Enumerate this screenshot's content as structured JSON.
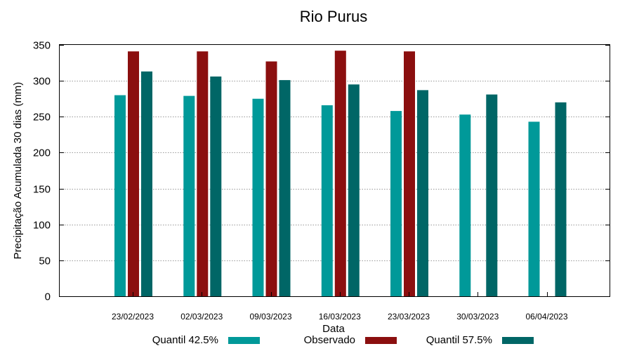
{
  "chart_data": {
    "type": "bar",
    "title": "Rio Purus",
    "xlabel": "Data",
    "ylabel": "Precipitação Acumulada 30 dias (mm)",
    "ylim": [
      0,
      350
    ],
    "yticks": [
      0,
      50,
      100,
      150,
      200,
      250,
      300,
      350
    ],
    "grid": true,
    "legend_position": "bottom",
    "categories": [
      "23/02/2023",
      "02/03/2023",
      "09/03/2023",
      "16/03/2023",
      "23/03/2023",
      "30/03/2023",
      "06/04/2023"
    ],
    "series": [
      {
        "name": "Quantil 42.5%",
        "color": "#009999",
        "values": [
          280,
          279,
          275,
          266,
          258,
          253,
          243
        ]
      },
      {
        "name": "Observado",
        "color": "#8b0f0f",
        "values": [
          341,
          341,
          327,
          342,
          341,
          null,
          null
        ]
      },
      {
        "name": "Quantil 57.5%",
        "color": "#006666",
        "values": [
          313,
          306,
          301,
          295,
          287,
          281,
          270
        ]
      }
    ]
  }
}
